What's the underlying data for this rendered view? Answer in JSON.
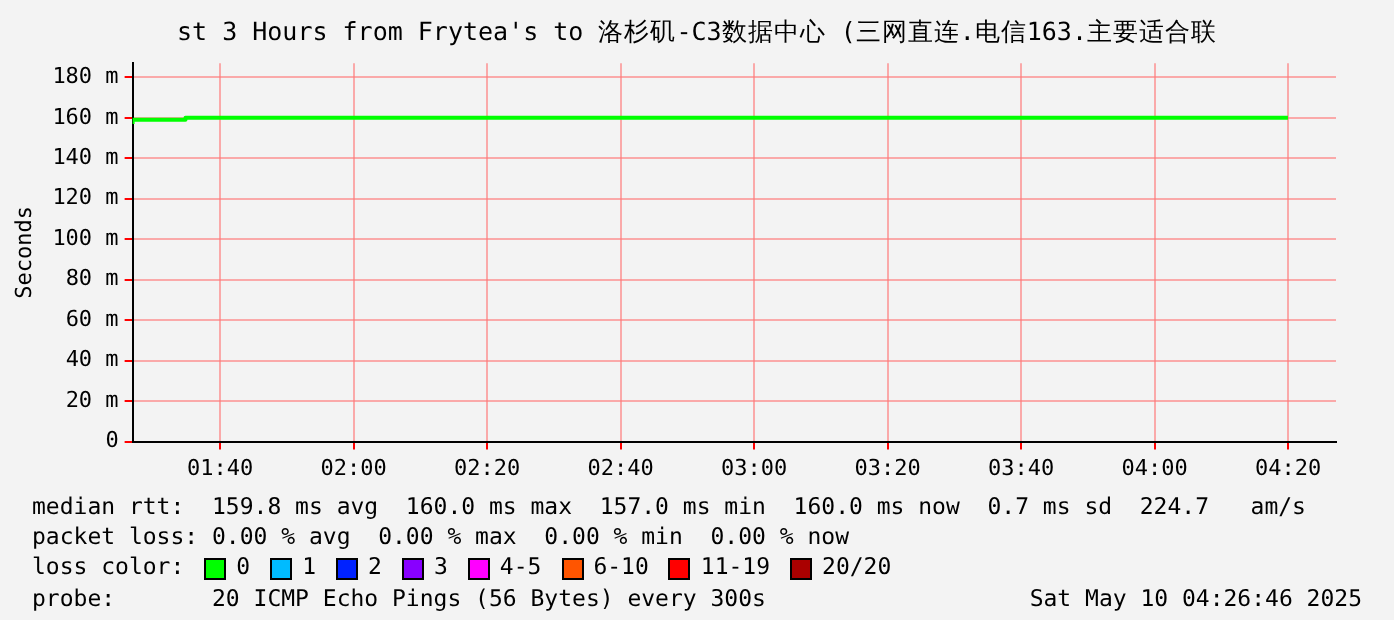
{
  "chart_data": {
    "type": "step",
    "title": "st 3 Hours from Frytea's to 洛杉矶-C3数据中心 (三网直连.电信163.主要适合联",
    "ylabel": "Seconds",
    "x": [
      1.448,
      1.58,
      1.667,
      4.333
    ],
    "series": [
      {
        "name": "0",
        "color": "#00ff00",
        "values": [
          157,
          159,
          160,
          160
        ]
      },
      {
        "name": "1",
        "color": "#00bbff",
        "values": [
          null,
          null,
          null,
          null
        ]
      },
      {
        "name": "2",
        "color": "#0022ff",
        "values": [
          null,
          null,
          null,
          null
        ]
      },
      {
        "name": "3",
        "color": "#8800ff",
        "values": [
          null,
          null,
          null,
          null
        ]
      },
      {
        "name": "4-5",
        "color": "#ff00ff",
        "values": [
          null,
          null,
          null,
          null
        ]
      },
      {
        "name": "6-10",
        "color": "#ff5500",
        "values": [
          null,
          null,
          null,
          null
        ]
      },
      {
        "name": "11-19",
        "color": "#ff0000",
        "values": [
          null,
          null,
          null,
          null
        ]
      },
      {
        "name": "20/20",
        "color": "#aa0000",
        "values": [
          null,
          null,
          null,
          null
        ]
      }
    ],
    "legend": "bottom",
    "legend_title": "loss color:",
    "xlim": [
      1.448,
      4.453
    ],
    "xticks": [
      {
        "value": 1.6667,
        "label": "01:40"
      },
      {
        "value": 2,
        "label": "02:00"
      },
      {
        "value": 2.3333,
        "label": "02:20"
      },
      {
        "value": 2.6667,
        "label": "02:40"
      },
      {
        "value": 3,
        "label": "03:00"
      },
      {
        "value": 3.3333,
        "label": "03:20"
      },
      {
        "value": 3.6667,
        "label": "03:40"
      },
      {
        "value": 4,
        "label": "04:00"
      },
      {
        "value": 4.3333,
        "label": "04:20"
      }
    ],
    "ylim": [
      0,
      187
    ],
    "yticks": [
      {
        "value": 0,
        "label": "0"
      },
      {
        "value": 20,
        "label": "20 m"
      },
      {
        "value": 40,
        "label": "40 m"
      },
      {
        "value": 60,
        "label": "60 m"
      },
      {
        "value": 80,
        "label": "80 m"
      },
      {
        "value": 100,
        "label": "100 m"
      },
      {
        "value": 120,
        "label": "120 m"
      },
      {
        "value": 140,
        "label": "140 m"
      },
      {
        "value": 160,
        "label": "160 m"
      },
      {
        "value": 180,
        "label": "180 m"
      }
    ],
    "grid": true,
    "annotations": [
      "median rtt:  159.8 ms avg  160.0 ms max  157.0 ms min  160.0 ms now  0.7 ms sd  224.7   am/s",
      "packet loss: 0.00 % avg  0.00 % max  0.00 % min  0.00 % now",
      "probe:       20 ICMP Echo Pings (56 Bytes) every 300s",
      "Sat May 10 04:26:46 2025"
    ]
  }
}
